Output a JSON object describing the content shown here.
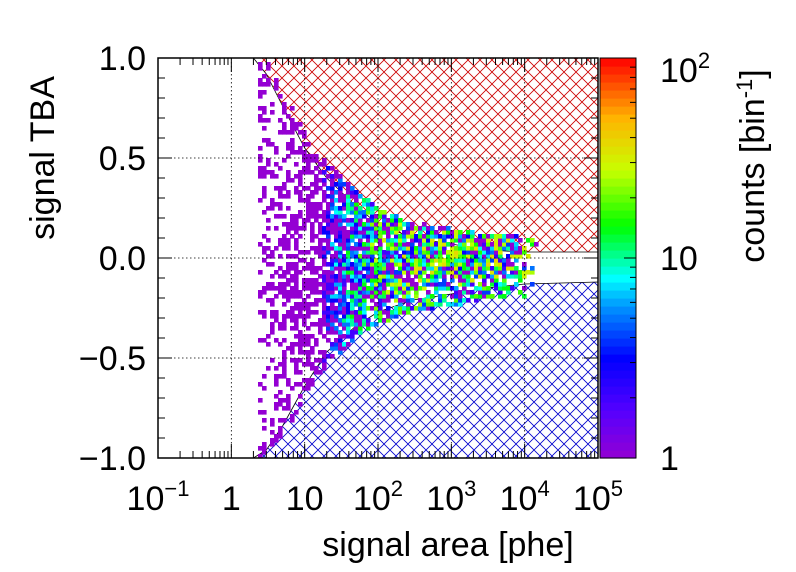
{
  "chart_data": {
    "type": "heatmap",
    "xlabel": "signal area [phe]",
    "ylabel": "signal TBA",
    "colorbar_label": "counts [bin",
    "colorbar_label_exp": "-1",
    "colorbar_label_close": "]",
    "x_scale": "log",
    "xlim": [
      0.1,
      100000
    ],
    "ylim": [
      -1.0,
      1.0
    ],
    "x_ticks": [
      {
        "value": 0.1,
        "base": "10",
        "exp": "−1"
      },
      {
        "value": 1,
        "base": "1",
        "exp": ""
      },
      {
        "value": 10,
        "base": "10",
        "exp": ""
      },
      {
        "value": 100,
        "base": "10",
        "exp": "2"
      },
      {
        "value": 1000,
        "base": "10",
        "exp": "3"
      },
      {
        "value": 10000,
        "base": "10",
        "exp": "4"
      },
      {
        "value": 100000,
        "base": "10",
        "exp": "5"
      }
    ],
    "y_ticks": [
      {
        "value": 1.0,
        "label": "1.0"
      },
      {
        "value": 0.5,
        "label": "0.5"
      },
      {
        "value": 0.0,
        "label": "0.0"
      },
      {
        "value": -0.5,
        "label": "−0.5"
      },
      {
        "value": -1.0,
        "label": "−1.0"
      }
    ],
    "colorbar": {
      "scale": "log",
      "range": [
        1,
        100
      ],
      "ticks": [
        {
          "value": 1,
          "base": "1",
          "exp": ""
        },
        {
          "value": 10,
          "base": "10",
          "exp": ""
        },
        {
          "value": 100,
          "base": "10",
          "exp": "2"
        }
      ]
    },
    "grid": true,
    "excluded_upper": {
      "color": "#cc0000",
      "boundary": [
        [
          2,
          1.0
        ],
        [
          3,
          0.92
        ],
        [
          5,
          0.76
        ],
        [
          10,
          0.55
        ],
        [
          20,
          0.4
        ],
        [
          50,
          0.26
        ],
        [
          100,
          0.17
        ],
        [
          300,
          0.1
        ],
        [
          1000,
          0.07
        ],
        [
          3000,
          0.04
        ],
        [
          10000,
          0.03
        ],
        [
          100000,
          0.03
        ]
      ]
    },
    "excluded_lower": {
      "color": "#0000cc",
      "boundary": [
        [
          2,
          -1.0
        ],
        [
          3,
          -0.96
        ],
        [
          5,
          -0.84
        ],
        [
          10,
          -0.64
        ],
        [
          20,
          -0.47
        ],
        [
          50,
          -0.34
        ],
        [
          100,
          -0.27
        ],
        [
          300,
          -0.21
        ],
        [
          1000,
          -0.18
        ],
        [
          3000,
          -0.15
        ],
        [
          10000,
          -0.13
        ],
        [
          100000,
          -0.12
        ]
      ]
    },
    "density_ridge": [
      [
        10,
        -0.05
      ],
      [
        100,
        -0.02
      ],
      [
        1000,
        0.0
      ],
      [
        10000,
        0.0
      ]
    ],
    "max_count": 40
  }
}
